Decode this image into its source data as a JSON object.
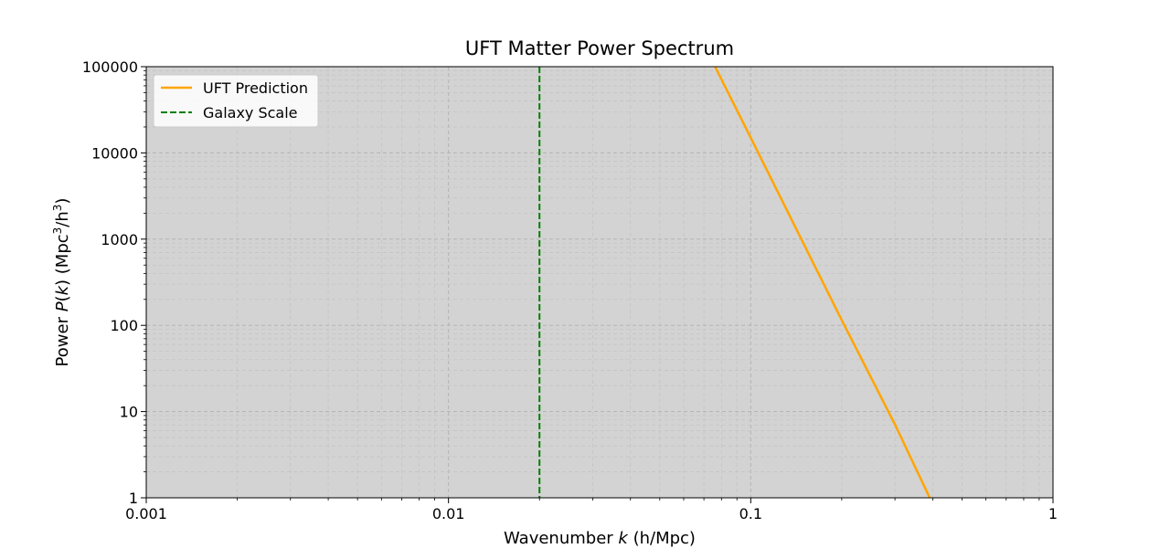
{
  "chart_data": {
    "type": "line",
    "title": "UFT Matter Power Spectrum",
    "xlabel": {
      "prefix": "Wavenumber ",
      "var": "k",
      "suffix": " (h/Mpc)"
    },
    "ylabel": {
      "prefix": "Power ",
      "var": "P",
      "open": "(",
      "var2": "k",
      "close": ")",
      "unit_pre": " (Mpc",
      "exp1": "3",
      "unit_mid": "/h",
      "exp2": "3",
      "unit_post": ")"
    },
    "xscale": "log",
    "yscale": "log",
    "xlim": [
      0.001,
      1
    ],
    "ylim": [
      1,
      100000
    ],
    "xticks": [
      {
        "value": 0.001,
        "label": "0.001"
      },
      {
        "value": 0.01,
        "label": "0.01"
      },
      {
        "value": 0.1,
        "label": "0.1"
      },
      {
        "value": 1,
        "label": "1"
      }
    ],
    "yticks": [
      {
        "value": 1,
        "label": "1"
      },
      {
        "value": 10,
        "label": "10"
      },
      {
        "value": 100,
        "label": "100"
      },
      {
        "value": 1000,
        "label": "1000"
      },
      {
        "value": 10000,
        "label": "10000"
      },
      {
        "value": 100000,
        "label": "100000"
      }
    ],
    "grid": true,
    "plot_background": "#d3d3d3",
    "legend_position": "upper-left",
    "series": [
      {
        "name": "UFT Prediction",
        "kind": "line",
        "color": "#ffa500",
        "x": [
          0.0762,
          0.1,
          0.2,
          0.3,
          0.391
        ],
        "y": [
          100000,
          15000,
          115,
          7.1,
          1
        ]
      },
      {
        "name": "Galaxy Scale",
        "kind": "vline",
        "color": "#008000",
        "style": "dashed",
        "x": 0.02
      }
    ]
  }
}
